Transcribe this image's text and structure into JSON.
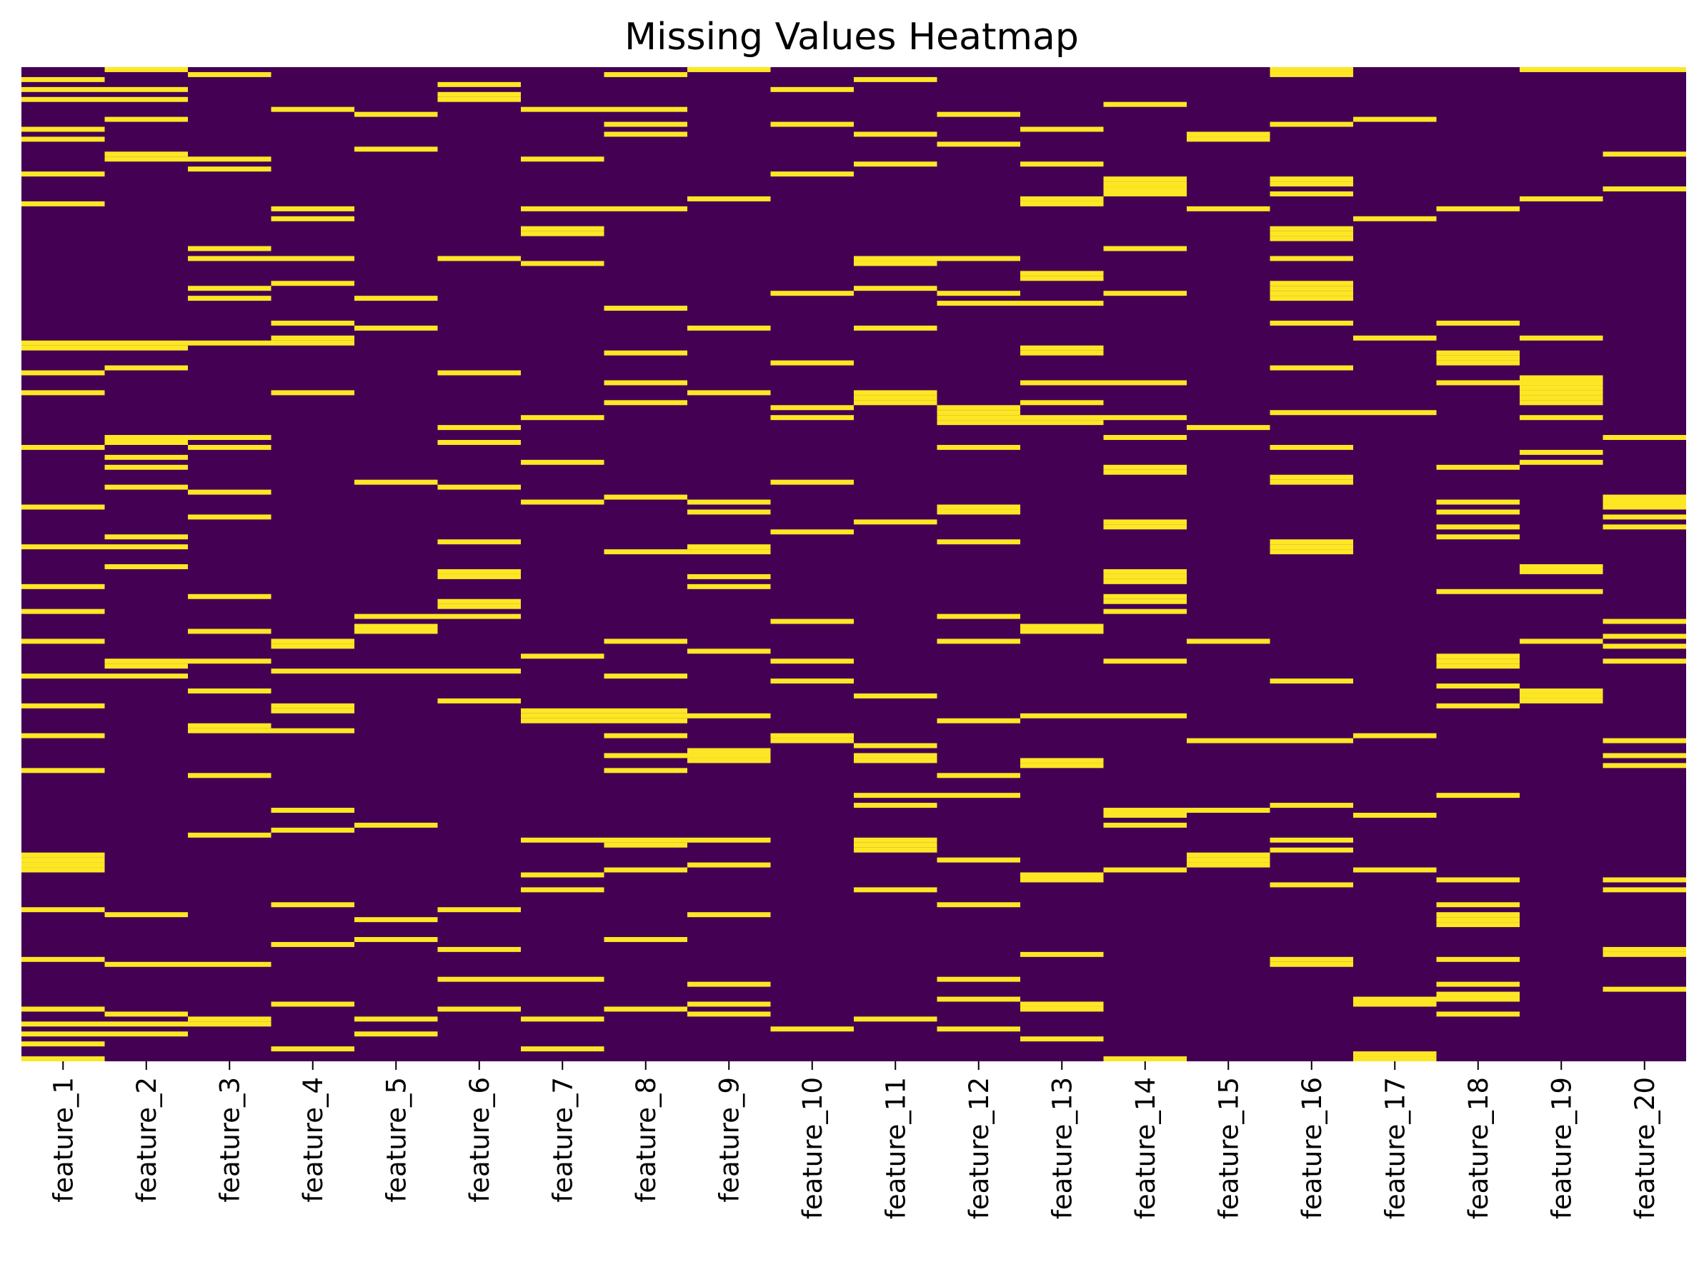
{
  "chart_data": {
    "type": "heatmap",
    "title": "Missing Values Heatmap",
    "xlabel": "",
    "ylabel": "",
    "colorbar": false,
    "grid": false,
    "n_rows": 200,
    "colors": {
      "present": "#440154",
      "missing": "#FDE725"
    },
    "categories": [
      "feature_1",
      "feature_2",
      "feature_3",
      "feature_4",
      "feature_5",
      "feature_6",
      "feature_7",
      "feature_8",
      "feature_9",
      "feature_10",
      "feature_11",
      "feature_12",
      "feature_13",
      "feature_14",
      "feature_15",
      "feature_16",
      "feature_17",
      "feature_18",
      "feature_19",
      "feature_20"
    ],
    "missing_rows": [
      [
        2,
        4,
        6,
        12,
        14,
        21,
        27,
        55,
        56,
        61,
        65,
        76,
        88,
        96,
        104,
        109,
        115,
        122,
        128,
        134,
        141,
        158,
        159,
        160,
        161,
        169,
        179,
        189,
        192,
        194,
        196,
        199
      ],
      [
        0,
        4,
        6,
        10,
        17,
        18,
        55,
        56,
        60,
        74,
        75,
        78,
        80,
        84,
        94,
        96,
        100,
        119,
        120,
        122,
        170,
        180,
        190,
        192,
        194
      ],
      [
        1,
        18,
        20,
        36,
        38,
        44,
        46,
        55,
        74,
        76,
        85,
        90,
        106,
        113,
        119,
        125,
        132,
        133,
        142,
        154,
        180,
        191,
        192
      ],
      [
        8,
        28,
        30,
        38,
        43,
        51,
        54,
        55,
        65,
        115,
        116,
        121,
        128,
        129,
        133,
        149,
        153,
        168,
        176,
        188,
        197
      ],
      [
        9,
        16,
        46,
        52,
        83,
        110,
        112,
        113,
        121,
        152,
        171,
        175,
        191,
        194
      ],
      [
        3,
        5,
        6,
        38,
        61,
        72,
        75,
        84,
        95,
        101,
        102,
        107,
        108,
        110,
        121,
        127,
        169,
        177,
        183,
        189
      ],
      [
        8,
        18,
        28,
        32,
        33,
        39,
        70,
        79,
        87,
        118,
        129,
        130,
        131,
        155,
        162,
        165,
        183,
        191,
        197
      ],
      [
        1,
        8,
        11,
        13,
        28,
        48,
        57,
        63,
        67,
        86,
        97,
        115,
        122,
        129,
        130,
        131,
        134,
        138,
        141,
        155,
        156,
        161,
        175,
        189
      ],
      [
        0,
        26,
        52,
        65,
        87,
        89,
        96,
        97,
        102,
        104,
        117,
        130,
        137,
        138,
        139,
        155,
        160,
        170,
        184,
        188,
        190
      ],
      [
        4,
        11,
        21,
        45,
        59,
        68,
        70,
        83,
        93,
        111,
        119,
        123,
        134,
        135,
        193
      ],
      [
        2,
        13,
        19,
        38,
        39,
        44,
        52,
        65,
        66,
        67,
        91,
        126,
        136,
        138,
        139,
        146,
        148,
        155,
        156,
        157,
        165,
        191
      ],
      [
        9,
        15,
        38,
        45,
        47,
        69,
        68,
        69,
        70,
        71,
        76,
        88,
        89,
        95,
        110,
        115,
        131,
        142,
        146,
        159,
        168,
        183,
        187,
        193
      ],
      [
        12,
        19,
        26,
        27,
        41,
        42,
        47,
        56,
        57,
        63,
        67,
        70,
        71,
        112,
        113,
        130,
        139,
        140,
        162,
        163,
        178,
        188,
        189,
        195
      ],
      [
        7,
        22,
        23,
        24,
        25,
        36,
        45,
        63,
        70,
        74,
        80,
        81,
        91,
        92,
        101,
        102,
        103,
        106,
        107,
        109,
        119,
        130,
        149,
        150,
        152,
        161,
        199
      ],
      [
        13,
        14,
        28,
        72,
        115,
        135,
        149,
        158,
        159,
        160
      ],
      [
        0,
        1,
        11,
        22,
        23,
        25,
        32,
        33,
        34,
        38,
        43,
        44,
        45,
        46,
        51,
        60,
        69,
        76,
        82,
        83,
        95,
        96,
        97,
        123,
        135,
        148,
        155,
        157,
        164,
        179,
        180
      ],
      [
        10,
        30,
        54,
        69,
        134,
        150,
        161,
        187,
        188,
        198,
        199
      ],
      [
        28,
        51,
        57,
        58,
        59,
        63,
        80,
        87,
        89,
        92,
        94,
        105,
        118,
        119,
        120,
        124,
        128,
        146,
        163,
        168,
        170,
        171,
        172,
        179,
        184,
        186,
        187,
        190
      ],
      [
        0,
        26,
        54,
        62,
        63,
        64,
        65,
        66,
        67,
        70,
        77,
        79,
        100,
        101,
        105,
        115,
        125,
        126,
        127
      ],
      [
        0,
        17,
        24,
        74,
        86,
        87,
        88,
        90,
        92,
        111,
        114,
        116,
        119,
        135,
        138,
        140,
        163,
        165,
        177,
        178,
        185
      ]
    ]
  }
}
